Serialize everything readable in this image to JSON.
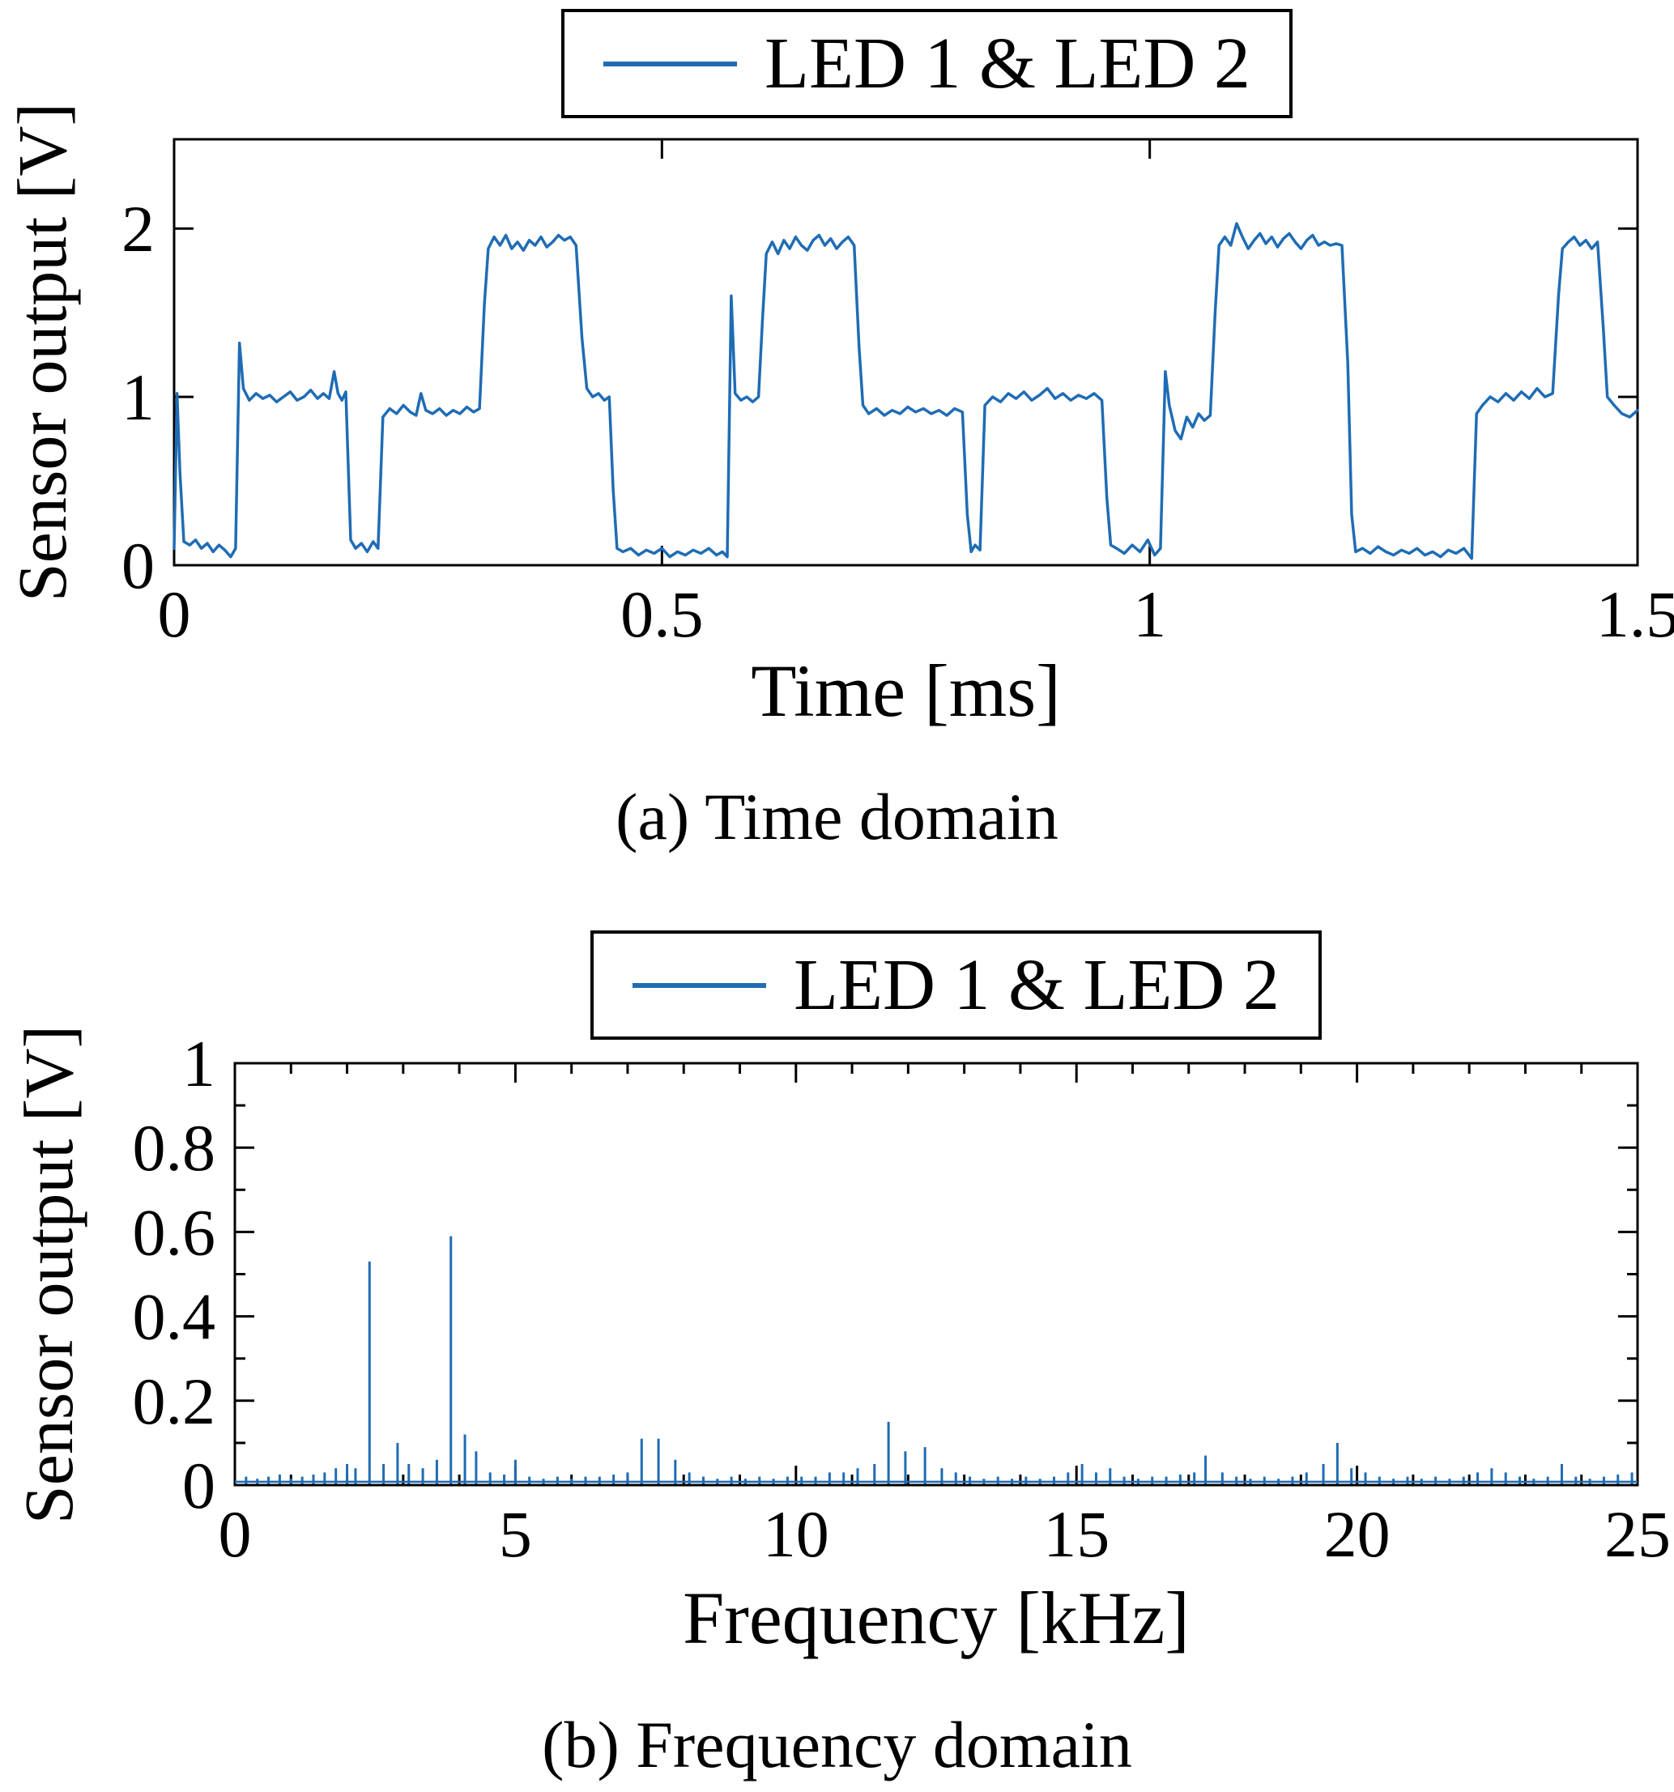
{
  "colors": {
    "line": "#1f6cb4",
    "axis": "#000000",
    "background": "#ffffff"
  },
  "figure": {
    "caption_a": "(a) Time domain",
    "caption_b": "(b) Frequency domain"
  },
  "chart_data": [
    {
      "type": "line",
      "legend": [
        "LED 1 & LED 2"
      ],
      "legend_position": "above",
      "xlabel": "Time [ms]",
      "ylabel": "Sensor output [V]",
      "xlim": [
        0,
        1.5
      ],
      "ylim": [
        0,
        2.53
      ],
      "xticks": [
        0,
        0.5,
        1,
        1.5
      ],
      "xtick_labels": [
        "0",
        "0.5",
        "1",
        "1.5"
      ],
      "yticks": [
        0,
        1,
        2
      ],
      "ytick_labels": [
        "0",
        "1",
        "2"
      ],
      "grid": false,
      "points": [
        [
          0.0,
          0.1
        ],
        [
          0.003,
          1.02
        ],
        [
          0.006,
          0.55
        ],
        [
          0.01,
          0.14
        ],
        [
          0.016,
          0.12
        ],
        [
          0.022,
          0.15
        ],
        [
          0.028,
          0.1
        ],
        [
          0.034,
          0.13
        ],
        [
          0.04,
          0.08
        ],
        [
          0.046,
          0.12
        ],
        [
          0.052,
          0.09
        ],
        [
          0.058,
          0.05
        ],
        [
          0.063,
          0.1
        ],
        [
          0.067,
          1.32
        ],
        [
          0.071,
          1.05
        ],
        [
          0.077,
          0.98
        ],
        [
          0.084,
          1.02
        ],
        [
          0.091,
          0.99
        ],
        [
          0.098,
          1.01
        ],
        [
          0.105,
          0.97
        ],
        [
          0.112,
          1.0
        ],
        [
          0.119,
          1.03
        ],
        [
          0.126,
          0.98
        ],
        [
          0.133,
          1.0
        ],
        [
          0.14,
          1.04
        ],
        [
          0.147,
          0.99
        ],
        [
          0.153,
          1.02
        ],
        [
          0.159,
          0.99
        ],
        [
          0.164,
          1.15
        ],
        [
          0.168,
          1.02
        ],
        [
          0.172,
          0.98
        ],
        [
          0.176,
          1.03
        ],
        [
          0.181,
          0.15
        ],
        [
          0.186,
          0.1
        ],
        [
          0.192,
          0.13
        ],
        [
          0.198,
          0.08
        ],
        [
          0.204,
          0.14
        ],
        [
          0.209,
          0.1
        ],
        [
          0.214,
          0.88
        ],
        [
          0.221,
          0.93
        ],
        [
          0.228,
          0.9
        ],
        [
          0.235,
          0.95
        ],
        [
          0.242,
          0.91
        ],
        [
          0.248,
          0.89
        ],
        [
          0.253,
          1.02
        ],
        [
          0.258,
          0.92
        ],
        [
          0.265,
          0.9
        ],
        [
          0.272,
          0.93
        ],
        [
          0.279,
          0.89
        ],
        [
          0.286,
          0.92
        ],
        [
          0.293,
          0.9
        ],
        [
          0.3,
          0.94
        ],
        [
          0.307,
          0.91
        ],
        [
          0.313,
          0.93
        ],
        [
          0.318,
          1.55
        ],
        [
          0.322,
          1.88
        ],
        [
          0.328,
          1.95
        ],
        [
          0.334,
          1.9
        ],
        [
          0.34,
          1.96
        ],
        [
          0.346,
          1.88
        ],
        [
          0.352,
          1.92
        ],
        [
          0.358,
          1.87
        ],
        [
          0.364,
          1.93
        ],
        [
          0.37,
          1.9
        ],
        [
          0.376,
          1.95
        ],
        [
          0.382,
          1.89
        ],
        [
          0.388,
          1.92
        ],
        [
          0.394,
          1.96
        ],
        [
          0.4,
          1.93
        ],
        [
          0.406,
          1.95
        ],
        [
          0.412,
          1.9
        ],
        [
          0.418,
          1.35
        ],
        [
          0.423,
          1.05
        ],
        [
          0.429,
          1.0
        ],
        [
          0.435,
          1.02
        ],
        [
          0.441,
          0.98
        ],
        [
          0.446,
          1.0
        ],
        [
          0.45,
          0.45
        ],
        [
          0.454,
          0.1
        ],
        [
          0.46,
          0.08
        ],
        [
          0.468,
          0.1
        ],
        [
          0.476,
          0.06
        ],
        [
          0.484,
          0.09
        ],
        [
          0.492,
          0.07
        ],
        [
          0.5,
          0.1
        ],
        [
          0.508,
          0.05
        ],
        [
          0.516,
          0.08
        ],
        [
          0.524,
          0.06
        ],
        [
          0.532,
          0.09
        ],
        [
          0.54,
          0.07
        ],
        [
          0.548,
          0.1
        ],
        [
          0.556,
          0.06
        ],
        [
          0.562,
          0.08
        ],
        [
          0.567,
          0.05
        ],
        [
          0.571,
          1.6
        ],
        [
          0.575,
          1.02
        ],
        [
          0.581,
          0.98
        ],
        [
          0.587,
          1.0
        ],
        [
          0.593,
          0.97
        ],
        [
          0.599,
          1.0
        ],
        [
          0.603,
          1.45
        ],
        [
          0.607,
          1.85
        ],
        [
          0.613,
          1.92
        ],
        [
          0.619,
          1.85
        ],
        [
          0.625,
          1.93
        ],
        [
          0.631,
          1.88
        ],
        [
          0.637,
          1.95
        ],
        [
          0.643,
          1.9
        ],
        [
          0.649,
          1.87
        ],
        [
          0.655,
          1.93
        ],
        [
          0.661,
          1.96
        ],
        [
          0.667,
          1.9
        ],
        [
          0.673,
          1.94
        ],
        [
          0.679,
          1.88
        ],
        [
          0.685,
          1.92
        ],
        [
          0.691,
          1.95
        ],
        [
          0.697,
          1.9
        ],
        [
          0.702,
          1.3
        ],
        [
          0.706,
          0.95
        ],
        [
          0.712,
          0.9
        ],
        [
          0.72,
          0.93
        ],
        [
          0.728,
          0.89
        ],
        [
          0.736,
          0.92
        ],
        [
          0.744,
          0.9
        ],
        [
          0.752,
          0.94
        ],
        [
          0.76,
          0.91
        ],
        [
          0.768,
          0.93
        ],
        [
          0.776,
          0.9
        ],
        [
          0.784,
          0.92
        ],
        [
          0.792,
          0.89
        ],
        [
          0.8,
          0.93
        ],
        [
          0.808,
          0.91
        ],
        [
          0.813,
          0.3
        ],
        [
          0.817,
          0.08
        ],
        [
          0.821,
          0.12
        ],
        [
          0.826,
          0.09
        ],
        [
          0.831,
          0.95
        ],
        [
          0.839,
          1.0
        ],
        [
          0.847,
          0.97
        ],
        [
          0.855,
          1.02
        ],
        [
          0.863,
          0.99
        ],
        [
          0.871,
          1.03
        ],
        [
          0.879,
          0.98
        ],
        [
          0.887,
          1.01
        ],
        [
          0.895,
          1.05
        ],
        [
          0.903,
          0.99
        ],
        [
          0.911,
          1.02
        ],
        [
          0.919,
          0.98
        ],
        [
          0.927,
          1.01
        ],
        [
          0.935,
          0.99
        ],
        [
          0.943,
          1.02
        ],
        [
          0.951,
          0.98
        ],
        [
          0.956,
          0.4
        ],
        [
          0.96,
          0.12
        ],
        [
          0.966,
          0.1
        ],
        [
          0.974,
          0.07
        ],
        [
          0.982,
          0.12
        ],
        [
          0.99,
          0.08
        ],
        [
          0.998,
          0.15
        ],
        [
          1.005,
          0.06
        ],
        [
          1.011,
          0.1
        ],
        [
          1.016,
          1.15
        ],
        [
          1.02,
          0.95
        ],
        [
          1.026,
          0.8
        ],
        [
          1.032,
          0.75
        ],
        [
          1.038,
          0.88
        ],
        [
          1.044,
          0.82
        ],
        [
          1.05,
          0.9
        ],
        [
          1.056,
          0.86
        ],
        [
          1.062,
          0.89
        ],
        [
          1.067,
          1.5
        ],
        [
          1.071,
          1.9
        ],
        [
          1.077,
          1.95
        ],
        [
          1.083,
          1.9
        ],
        [
          1.089,
          2.03
        ],
        [
          1.095,
          1.95
        ],
        [
          1.101,
          1.88
        ],
        [
          1.107,
          1.93
        ],
        [
          1.113,
          1.97
        ],
        [
          1.119,
          1.91
        ],
        [
          1.125,
          1.95
        ],
        [
          1.131,
          1.89
        ],
        [
          1.137,
          1.94
        ],
        [
          1.143,
          1.97
        ],
        [
          1.149,
          1.92
        ],
        [
          1.155,
          1.88
        ],
        [
          1.161,
          1.93
        ],
        [
          1.167,
          1.96
        ],
        [
          1.173,
          1.9
        ],
        [
          1.179,
          1.92
        ],
        [
          1.185,
          1.9
        ],
        [
          1.191,
          1.91
        ],
        [
          1.197,
          1.9
        ],
        [
          1.203,
          1.2
        ],
        [
          1.207,
          0.3
        ],
        [
          1.211,
          0.08
        ],
        [
          1.218,
          0.1
        ],
        [
          1.226,
          0.07
        ],
        [
          1.234,
          0.11
        ],
        [
          1.242,
          0.08
        ],
        [
          1.25,
          0.06
        ],
        [
          1.258,
          0.09
        ],
        [
          1.266,
          0.07
        ],
        [
          1.274,
          0.1
        ],
        [
          1.282,
          0.06
        ],
        [
          1.29,
          0.08
        ],
        [
          1.298,
          0.05
        ],
        [
          1.306,
          0.09
        ],
        [
          1.314,
          0.07
        ],
        [
          1.322,
          0.1
        ],
        [
          1.33,
          0.04
        ],
        [
          1.335,
          0.9
        ],
        [
          1.341,
          0.95
        ],
        [
          1.349,
          1.0
        ],
        [
          1.357,
          0.97
        ],
        [
          1.365,
          1.02
        ],
        [
          1.373,
          0.98
        ],
        [
          1.381,
          1.03
        ],
        [
          1.389,
          0.99
        ],
        [
          1.397,
          1.05
        ],
        [
          1.405,
          1.0
        ],
        [
          1.413,
          1.02
        ],
        [
          1.419,
          1.6
        ],
        [
          1.423,
          1.88
        ],
        [
          1.429,
          1.92
        ],
        [
          1.435,
          1.95
        ],
        [
          1.441,
          1.9
        ],
        [
          1.447,
          1.93
        ],
        [
          1.453,
          1.88
        ],
        [
          1.459,
          1.92
        ],
        [
          1.465,
          1.4
        ],
        [
          1.469,
          1.0
        ],
        [
          1.476,
          0.95
        ],
        [
          1.484,
          0.9
        ],
        [
          1.492,
          0.88
        ],
        [
          1.5,
          0.92
        ]
      ]
    },
    {
      "type": "stem",
      "legend": [
        "LED 1 & LED 2"
      ],
      "legend_position": "above",
      "xlabel": "Frequency [kHz]",
      "ylabel": "Sensor output [V]",
      "xlim": [
        0,
        25
      ],
      "ylim": [
        0,
        1
      ],
      "xticks": [
        0,
        5,
        10,
        15,
        20,
        25
      ],
      "xtick_labels": [
        "0",
        "5",
        "10",
        "15",
        "20",
        "25"
      ],
      "yticks": [
        0,
        0.2,
        0.4,
        0.6,
        0.8,
        1
      ],
      "ytick_labels": [
        "0",
        "0.2",
        "0.4",
        "0.6",
        "0.8",
        "1"
      ],
      "x_minor_step": 1,
      "y_minor_step": 0.1,
      "grid": false,
      "baseline": 0.008,
      "peaks": [
        [
          0.2,
          0.02
        ],
        [
          0.4,
          0.015
        ],
        [
          0.6,
          0.02
        ],
        [
          0.8,
          0.025
        ],
        [
          1.0,
          0.015
        ],
        [
          1.2,
          0.02
        ],
        [
          1.4,
          0.025
        ],
        [
          1.6,
          0.03
        ],
        [
          1.8,
          0.04
        ],
        [
          2.0,
          0.05
        ],
        [
          2.15,
          0.04
        ],
        [
          2.4,
          0.53
        ],
        [
          2.65,
          0.05
        ],
        [
          2.9,
          0.1
        ],
        [
          3.1,
          0.05
        ],
        [
          3.35,
          0.04
        ],
        [
          3.6,
          0.06
        ],
        [
          3.85,
          0.59
        ],
        [
          4.1,
          0.12
        ],
        [
          4.3,
          0.08
        ],
        [
          4.55,
          0.03
        ],
        [
          4.8,
          0.025
        ],
        [
          5.0,
          0.06
        ],
        [
          5.25,
          0.02
        ],
        [
          5.5,
          0.015
        ],
        [
          5.75,
          0.02
        ],
        [
          6.0,
          0.015
        ],
        [
          6.25,
          0.02
        ],
        [
          6.5,
          0.02
        ],
        [
          6.75,
          0.025
        ],
        [
          7.0,
          0.03
        ],
        [
          7.25,
          0.11
        ],
        [
          7.55,
          0.11
        ],
        [
          7.85,
          0.06
        ],
        [
          8.1,
          0.03
        ],
        [
          8.35,
          0.02
        ],
        [
          8.6,
          0.015
        ],
        [
          8.85,
          0.02
        ],
        [
          9.1,
          0.015
        ],
        [
          9.35,
          0.02
        ],
        [
          9.6,
          0.015
        ],
        [
          9.85,
          0.02
        ],
        [
          10.1,
          0.02
        ],
        [
          10.35,
          0.02
        ],
        [
          10.6,
          0.03
        ],
        [
          10.85,
          0.03
        ],
        [
          11.1,
          0.04
        ],
        [
          11.4,
          0.05
        ],
        [
          11.65,
          0.15
        ],
        [
          11.95,
          0.08
        ],
        [
          12.3,
          0.09
        ],
        [
          12.6,
          0.04
        ],
        [
          12.85,
          0.03
        ],
        [
          13.1,
          0.02
        ],
        [
          13.35,
          0.015
        ],
        [
          13.6,
          0.02
        ],
        [
          13.85,
          0.015
        ],
        [
          14.1,
          0.02
        ],
        [
          14.35,
          0.015
        ],
        [
          14.6,
          0.02
        ],
        [
          14.85,
          0.03
        ],
        [
          15.1,
          0.05
        ],
        [
          15.35,
          0.03
        ],
        [
          15.6,
          0.04
        ],
        [
          15.85,
          0.02
        ],
        [
          16.1,
          0.015
        ],
        [
          16.35,
          0.02
        ],
        [
          16.6,
          0.02
        ],
        [
          16.85,
          0.025
        ],
        [
          17.1,
          0.03
        ],
        [
          17.3,
          0.07
        ],
        [
          17.6,
          0.03
        ],
        [
          17.85,
          0.02
        ],
        [
          18.1,
          0.015
        ],
        [
          18.35,
          0.02
        ],
        [
          18.6,
          0.015
        ],
        [
          18.85,
          0.02
        ],
        [
          19.1,
          0.03
        ],
        [
          19.4,
          0.05
        ],
        [
          19.65,
          0.1
        ],
        [
          19.9,
          0.04
        ],
        [
          20.15,
          0.03
        ],
        [
          20.4,
          0.02
        ],
        [
          20.65,
          0.015
        ],
        [
          20.9,
          0.02
        ],
        [
          21.15,
          0.015
        ],
        [
          21.4,
          0.02
        ],
        [
          21.65,
          0.015
        ],
        [
          21.9,
          0.02
        ],
        [
          22.15,
          0.03
        ],
        [
          22.4,
          0.04
        ],
        [
          22.65,
          0.03
        ],
        [
          22.9,
          0.02
        ],
        [
          23.15,
          0.015
        ],
        [
          23.4,
          0.02
        ],
        [
          23.65,
          0.05
        ],
        [
          23.9,
          0.02
        ],
        [
          24.15,
          0.015
        ],
        [
          24.4,
          0.02
        ],
        [
          24.65,
          0.025
        ],
        [
          24.9,
          0.03
        ]
      ]
    }
  ]
}
